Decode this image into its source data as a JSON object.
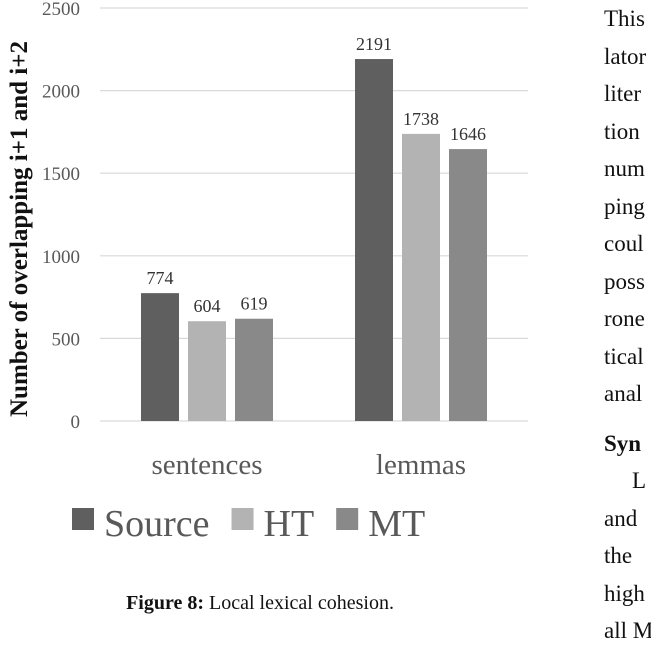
{
  "chart_data": {
    "type": "bar",
    "ylabel": "Number of overlapping i+1 and i+2",
    "categories": [
      "sentences",
      "lemmas"
    ],
    "ylim": [
      0,
      2500
    ],
    "yticks": [
      0,
      500,
      1000,
      1500,
      2000,
      2500
    ],
    "grid": true,
    "legend_position": "bottom",
    "series": [
      {
        "name": "Source",
        "values": [
          774,
          2191
        ],
        "color": "#5f5f5f"
      },
      {
        "name": "HT",
        "values": [
          604,
          1738
        ],
        "color": "#b3b3b3"
      },
      {
        "name": "MT",
        "values": [
          619,
          1646
        ],
        "color": "#898989"
      }
    ]
  },
  "caption": {
    "label": "Figure 8:",
    "text": " Local lexical cohesion."
  },
  "side_text": {
    "lines": [
      "This",
      "lator",
      "liter",
      "tion",
      "num",
      "ping",
      "coul",
      "poss",
      "rone",
      "tical",
      "anal"
    ],
    "heading": "Syn",
    "lines2": [
      "L",
      "and",
      "the",
      "high",
      "all M"
    ]
  }
}
